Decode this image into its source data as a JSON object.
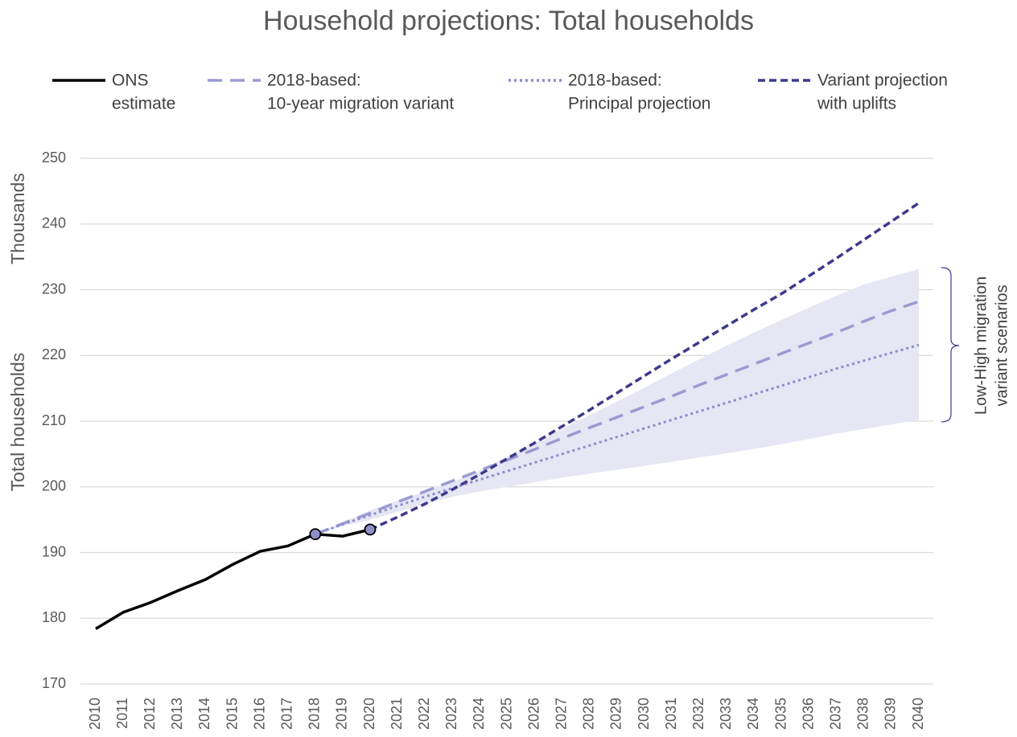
{
  "chart_data": {
    "type": "line",
    "title": "Household projections: Total households",
    "y_label": "Total households",
    "y_unit_label": "Thousands",
    "x": [
      2010,
      2011,
      2012,
      2013,
      2014,
      2015,
      2016,
      2017,
      2018,
      2019,
      2020,
      2021,
      2022,
      2023,
      2024,
      2025,
      2026,
      2027,
      2028,
      2029,
      2030,
      2031,
      2032,
      2033,
      2034,
      2035,
      2036,
      2037,
      2038,
      2039,
      2040
    ],
    "xlim": [
      2010,
      2040
    ],
    "xticks": [
      2010,
      2011,
      2012,
      2013,
      2014,
      2015,
      2016,
      2017,
      2018,
      2019,
      2020,
      2021,
      2022,
      2023,
      2024,
      2025,
      2026,
      2027,
      2028,
      2029,
      2030,
      2031,
      2032,
      2033,
      2034,
      2035,
      2036,
      2037,
      2038,
      2039,
      2040
    ],
    "ylim": [
      170,
      250
    ],
    "yticks": [
      170,
      180,
      190,
      200,
      210,
      220,
      230,
      240,
      250
    ],
    "grid": true,
    "legend": "top",
    "series": [
      {
        "name": [
          "ONS",
          "estimate"
        ],
        "color": "#000000",
        "dash": "solid",
        "values": [
          178.4,
          180.9,
          182.4,
          184.2,
          185.9,
          188.2,
          190.2,
          191.0,
          192.8,
          192.5,
          193.5,
          null,
          null,
          null,
          null,
          null,
          null,
          null,
          null,
          null,
          null,
          null,
          null,
          null,
          null,
          null,
          null,
          null,
          null,
          null,
          null
        ]
      },
      {
        "name": [
          "2018-based:",
          "10-year migration variant"
        ],
        "color": "#9b9bd2",
        "dash": "long",
        "values": [
          null,
          null,
          null,
          null,
          null,
          null,
          null,
          null,
          192.8,
          194.4,
          196.0,
          197.7,
          199.3,
          200.9,
          202.5,
          204.1,
          205.7,
          207.4,
          209.0,
          210.6,
          212.2,
          213.8,
          215.5,
          217.1,
          218.7,
          220.3,
          221.9,
          223.5,
          225.2,
          226.8,
          228.2
        ]
      },
      {
        "name": [
          "2018-based:",
          "Principal projection"
        ],
        "color": "#8c8cd0",
        "dash": "dot",
        "values": [
          null,
          null,
          null,
          null,
          null,
          null,
          null,
          null,
          192.8,
          194.3,
          195.7,
          197.1,
          198.5,
          199.8,
          201.1,
          202.4,
          203.7,
          205.0,
          206.3,
          207.6,
          208.9,
          210.2,
          211.5,
          212.8,
          214.1,
          215.4,
          216.7,
          218.0,
          219.2,
          220.4,
          221.6
        ]
      },
      {
        "name": [
          "Variant projection",
          "with uplifts"
        ],
        "color": "#3d3a8c",
        "dash": "short",
        "values": [
          null,
          null,
          null,
          null,
          null,
          null,
          null,
          null,
          null,
          null,
          193.5,
          195.4,
          197.4,
          199.6,
          201.9,
          204.3,
          206.7,
          209.2,
          211.7,
          214.3,
          216.9,
          219.5,
          222.0,
          224.5,
          227.0,
          229.4,
          232.1,
          234.8,
          237.6,
          240.4,
          243.2
        ]
      }
    ],
    "markers": [
      {
        "series": 0,
        "index": 8,
        "color": "#8f8fc8"
      },
      {
        "series": 0,
        "index": 10,
        "color": "#8f8fc8"
      }
    ],
    "band": {
      "label": [
        "Low-High migration",
        "variant scenarios"
      ],
      "color": "#e6e6f4",
      "lower": [
        null,
        null,
        null,
        null,
        null,
        null,
        null,
        null,
        192.8,
        194.0,
        195.0,
        196.2,
        197.4,
        198.5,
        199.3,
        200.0,
        200.7,
        201.4,
        202.0,
        202.6,
        203.2,
        203.8,
        204.5,
        205.1,
        205.8,
        206.5,
        207.3,
        208.1,
        208.8,
        209.5,
        210.2
      ],
      "upper": [
        null,
        null,
        null,
        null,
        null,
        null,
        null,
        null,
        192.8,
        194.6,
        196.4,
        197.9,
        199.3,
        200.7,
        202.5,
        204.6,
        206.7,
        208.8,
        210.9,
        213.0,
        215.1,
        217.3,
        219.4,
        221.5,
        223.5,
        225.4,
        227.3,
        229.1,
        230.8,
        232.0,
        233.1
      ]
    }
  }
}
